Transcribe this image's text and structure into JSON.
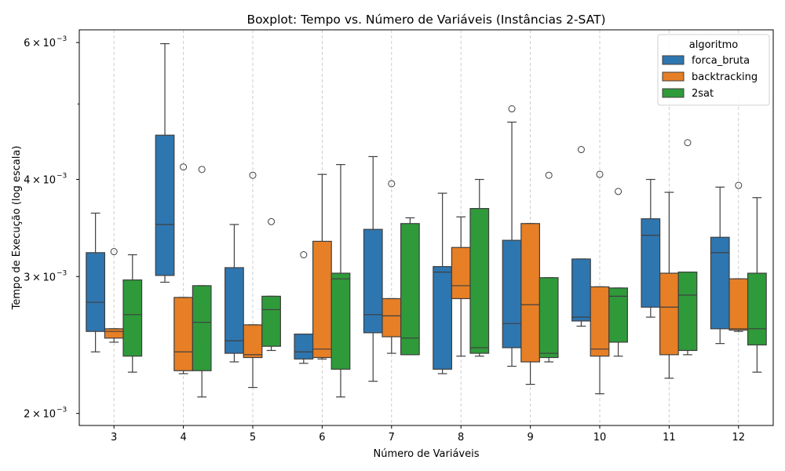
{
  "chart_data": {
    "type": "boxplot",
    "title": "Boxplot: Tempo vs. Número de Variáveis (Instâncias 2-SAT)",
    "xlabel": "Número de Variáveis",
    "ylabel": "Tempo de Execução (log escala)",
    "y_scale": "log",
    "ylim": [
      0.00193,
      0.00623
    ],
    "y_ticks": [
      {
        "value": 0.002,
        "base": "2 × 10",
        "exp": "−3"
      },
      {
        "value": 0.003,
        "base": "3 × 10",
        "exp": "−3"
      },
      {
        "value": 0.004,
        "base": "4 × 10",
        "exp": "−3"
      },
      {
        "value": 0.006,
        "base": "6 × 10",
        "exp": "−3"
      }
    ],
    "y_minor_ticks": [
      0.005
    ],
    "categories": [
      "3",
      "4",
      "5",
      "6",
      "7",
      "8",
      "9",
      "10",
      "11",
      "12"
    ],
    "grid": "vertical dashed",
    "legend": {
      "title": "algoritmo",
      "placement": "top-right"
    },
    "series": [
      {
        "name": "forca_bruta",
        "color": "#2e76b0",
        "boxes": [
          {
            "whislo": 0.0024,
            "q1": 0.00255,
            "med": 0.00278,
            "q3": 0.00322,
            "whishi": 0.00362,
            "fliers": []
          },
          {
            "whislo": 0.00295,
            "q1": 0.00301,
            "med": 0.0035,
            "q3": 0.00456,
            "whishi": 0.00598,
            "fliers": []
          },
          {
            "whislo": 0.00233,
            "q1": 0.00239,
            "med": 0.00248,
            "q3": 0.00308,
            "whishi": 0.0035,
            "fliers": []
          },
          {
            "whislo": 0.00232,
            "q1": 0.00235,
            "med": 0.0024,
            "q3": 0.00253,
            "whishi": 0.00253,
            "fliers": [
              0.0032
            ]
          },
          {
            "whislo": 0.0022,
            "q1": 0.00254,
            "med": 0.00268,
            "q3": 0.00345,
            "whishi": 0.00428,
            "fliers": []
          },
          {
            "whislo": 0.00225,
            "q1": 0.00228,
            "med": 0.00304,
            "q3": 0.00309,
            "whishi": 0.00384,
            "fliers": []
          },
          {
            "whislo": 0.0023,
            "q1": 0.00243,
            "med": 0.00261,
            "q3": 0.00334,
            "whishi": 0.00474,
            "fliers": [
              0.00493
            ]
          },
          {
            "whislo": 0.00259,
            "q1": 0.00263,
            "med": 0.00266,
            "q3": 0.00316,
            "whishi": 0.00316,
            "fliers": [
              0.00437
            ]
          },
          {
            "whislo": 0.00266,
            "q1": 0.00274,
            "med": 0.00339,
            "q3": 0.00356,
            "whishi": 0.004,
            "fliers": []
          },
          {
            "whislo": 0.00246,
            "q1": 0.00257,
            "med": 0.00322,
            "q3": 0.00337,
            "whishi": 0.00391,
            "fliers": []
          }
        ]
      },
      {
        "name": "backtracking",
        "color": "#e67f26",
        "boxes": [
          {
            "whislo": 0.00247,
            "q1": 0.0025,
            "med": 0.00255,
            "q3": 0.00257,
            "whishi": 0.00257,
            "fliers": [
              0.00323
            ]
          },
          {
            "whislo": 0.00225,
            "q1": 0.00227,
            "med": 0.0024,
            "q3": 0.00282,
            "whishi": 0.00282,
            "fliers": [
              0.00415
            ]
          },
          {
            "whislo": 0.00216,
            "q1": 0.00236,
            "med": 0.00238,
            "q3": 0.0026,
            "whishi": 0.0026,
            "fliers": [
              0.00405
            ]
          },
          {
            "whislo": 0.00235,
            "q1": 0.00236,
            "med": 0.00242,
            "q3": 0.00333,
            "whishi": 0.00406,
            "fliers": []
          },
          {
            "whislo": 0.00239,
            "q1": 0.00251,
            "med": 0.00267,
            "q3": 0.00281,
            "whishi": 0.00281,
            "fliers": [
              0.00395
            ]
          },
          {
            "whislo": 0.00237,
            "q1": 0.00281,
            "med": 0.00292,
            "q3": 0.00327,
            "whishi": 0.00358,
            "fliers": []
          },
          {
            "whislo": 0.00218,
            "q1": 0.00233,
            "med": 0.00276,
            "q3": 0.00351,
            "whishi": 0.00351,
            "fliers": []
          },
          {
            "whislo": 0.00212,
            "q1": 0.00237,
            "med": 0.00242,
            "q3": 0.00291,
            "whishi": 0.00291,
            "fliers": [
              0.00406
            ]
          },
          {
            "whislo": 0.00222,
            "q1": 0.00238,
            "med": 0.00274,
            "q3": 0.00303,
            "whishi": 0.00385,
            "fliers": []
          },
          {
            "whislo": 0.00255,
            "q1": 0.00256,
            "med": 0.00257,
            "q3": 0.00298,
            "whishi": 0.00298,
            "fliers": [
              0.00393
            ]
          }
        ]
      },
      {
        "name": "2sat",
        "color": "#2f9a3a",
        "boxes": [
          {
            "whislo": 0.00226,
            "q1": 0.00237,
            "med": 0.00268,
            "q3": 0.00297,
            "whishi": 0.0032,
            "fliers": []
          },
          {
            "whislo": 0.0021,
            "q1": 0.00227,
            "med": 0.00262,
            "q3": 0.00292,
            "whishi": 0.00292,
            "fliers": [
              0.00412
            ]
          },
          {
            "whislo": 0.00241,
            "q1": 0.00244,
            "med": 0.00272,
            "q3": 0.00283,
            "whishi": 0.00283,
            "fliers": [
              0.00353
            ]
          },
          {
            "whislo": 0.0021,
            "q1": 0.00228,
            "med": 0.00298,
            "q3": 0.00303,
            "whishi": 0.00418,
            "fliers": []
          },
          {
            "whislo": 0.00238,
            "q1": 0.00238,
            "med": 0.0025,
            "q3": 0.00351,
            "whishi": 0.00357,
            "fliers": []
          },
          {
            "whislo": 0.00237,
            "q1": 0.00239,
            "med": 0.00243,
            "q3": 0.00367,
            "whishi": 0.004,
            "fliers": []
          },
          {
            "whislo": 0.00233,
            "q1": 0.00236,
            "med": 0.00239,
            "q3": 0.00299,
            "whishi": 0.00299,
            "fliers": [
              0.00405
            ]
          },
          {
            "whislo": 0.00237,
            "q1": 0.00247,
            "med": 0.00283,
            "q3": 0.0029,
            "whishi": 0.0029,
            "fliers": [
              0.00386
            ]
          },
          {
            "whislo": 0.00238,
            "q1": 0.00241,
            "med": 0.00284,
            "q3": 0.00304,
            "whishi": 0.00304,
            "fliers": [
              0.00446
            ]
          },
          {
            "whislo": 0.00226,
            "q1": 0.00245,
            "med": 0.00257,
            "q3": 0.00303,
            "whishi": 0.00379,
            "fliers": []
          }
        ]
      }
    ]
  }
}
